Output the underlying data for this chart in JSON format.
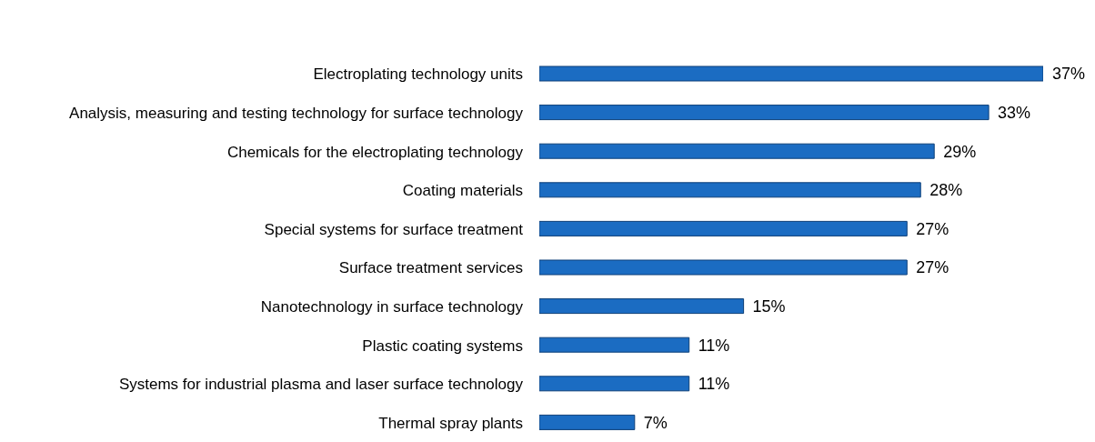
{
  "chart_data": {
    "type": "bar",
    "orientation": "horizontal",
    "categories": [
      "Electroplating technology units",
      "Analysis, measuring and testing technology for surface technology",
      "Chemicals for the electroplating technology",
      "Coating materials",
      "Special systems for surface treatment",
      "Surface treatment services",
      "Nanotechnology in surface technology",
      "Plastic coating systems",
      "Systems for industrial plasma and laser surface technology",
      "Thermal spray plants"
    ],
    "values": [
      37,
      33,
      29,
      28,
      27,
      27,
      15,
      11,
      11,
      7
    ],
    "value_labels": [
      "37%",
      "33%",
      "29%",
      "28%",
      "27%",
      "27%",
      "15%",
      "11%",
      "11%",
      "7%"
    ],
    "color": "#1b6cc2",
    "grid": false,
    "legend": false
  }
}
